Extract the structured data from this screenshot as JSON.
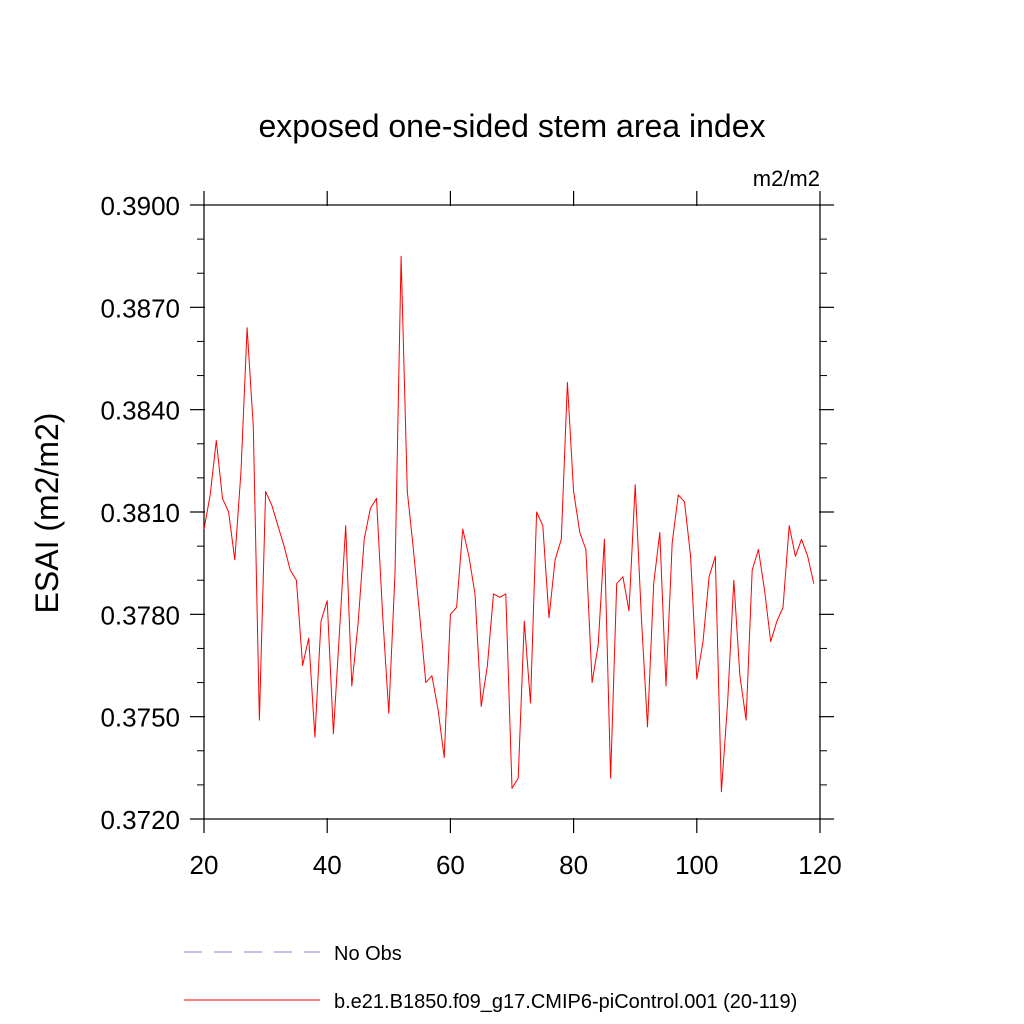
{
  "chart_data": {
    "type": "line",
    "title": "exposed one-sided stem area index",
    "units_label": "m2/m2",
    "ylabel": "ESAI  (m2/m2)",
    "xlabel": "",
    "xlim": [
      20,
      120
    ],
    "ylim": [
      0.372,
      0.39
    ],
    "x_ticks": [
      20,
      40,
      60,
      80,
      100,
      120
    ],
    "x_tick_labels": [
      "20",
      "40",
      "60",
      "80",
      "100",
      "120"
    ],
    "y_ticks": [
      0.372,
      0.375,
      0.378,
      0.381,
      0.384,
      0.387,
      0.39
    ],
    "y_tick_labels": [
      "0.3720",
      "0.3750",
      "0.3780",
      "0.3810",
      "0.3840",
      "0.3870",
      "0.3900"
    ],
    "grid": false,
    "legend_position": "bottom",
    "legend": [
      {
        "label": "No Obs",
        "color": "#8a7fd8",
        "style": "dashed"
      },
      {
        "label": "b.e21.B1850.f09_g17.CMIP6-piControl.001 (20-119)",
        "color": "#ff0000",
        "style": "solid"
      }
    ],
    "series": [
      {
        "name": "b.e21.B1850.f09_g17.CMIP6-piControl.001 (20-119)",
        "color": "#ff0000",
        "x": [
          20,
          21,
          22,
          23,
          24,
          25,
          26,
          27,
          28,
          29,
          30,
          31,
          32,
          33,
          34,
          35,
          36,
          37,
          38,
          39,
          40,
          41,
          42,
          43,
          44,
          45,
          46,
          47,
          48,
          49,
          50,
          51,
          52,
          53,
          54,
          55,
          56,
          57,
          58,
          59,
          60,
          61,
          62,
          63,
          64,
          65,
          66,
          67,
          68,
          69,
          70,
          71,
          72,
          73,
          74,
          75,
          76,
          77,
          78,
          79,
          80,
          81,
          82,
          83,
          84,
          85,
          86,
          87,
          88,
          89,
          90,
          91,
          92,
          93,
          94,
          95,
          96,
          97,
          98,
          99,
          100,
          101,
          102,
          103,
          104,
          105,
          106,
          107,
          108,
          109,
          110,
          111,
          112,
          113,
          114,
          115,
          116,
          117,
          118,
          119
        ],
        "values": [
          0.3805,
          0.3815,
          0.3831,
          0.3814,
          0.381,
          0.3796,
          0.3822,
          0.3864,
          0.3835,
          0.3749,
          0.3816,
          0.3812,
          0.3806,
          0.38,
          0.3793,
          0.379,
          0.3765,
          0.3773,
          0.3744,
          0.3778,
          0.3784,
          0.3745,
          0.3775,
          0.3806,
          0.3759,
          0.3777,
          0.3802,
          0.3811,
          0.3814,
          0.378,
          0.3751,
          0.3792,
          0.3885,
          0.3816,
          0.3799,
          0.378,
          0.376,
          0.3762,
          0.3752,
          0.3738,
          0.378,
          0.3782,
          0.3805,
          0.3797,
          0.3786,
          0.3753,
          0.3765,
          0.3786,
          0.3785,
          0.3786,
          0.3729,
          0.3732,
          0.3778,
          0.3754,
          0.381,
          0.3806,
          0.3779,
          0.3796,
          0.3802,
          0.3848,
          0.3816,
          0.3804,
          0.3799,
          0.376,
          0.3771,
          0.3802,
          0.3732,
          0.3789,
          0.3791,
          0.3781,
          0.3818,
          0.3779,
          0.3747,
          0.3789,
          0.3804,
          0.3759,
          0.3801,
          0.3815,
          0.3813,
          0.3797,
          0.3761,
          0.3772,
          0.3791,
          0.3797,
          0.3728,
          0.3754,
          0.379,
          0.3762,
          0.3749,
          0.3793,
          0.3799,
          0.3787,
          0.3772,
          0.3778,
          0.3782,
          0.3806,
          0.3797,
          0.3802,
          0.3797,
          0.3789
        ]
      }
    ]
  }
}
